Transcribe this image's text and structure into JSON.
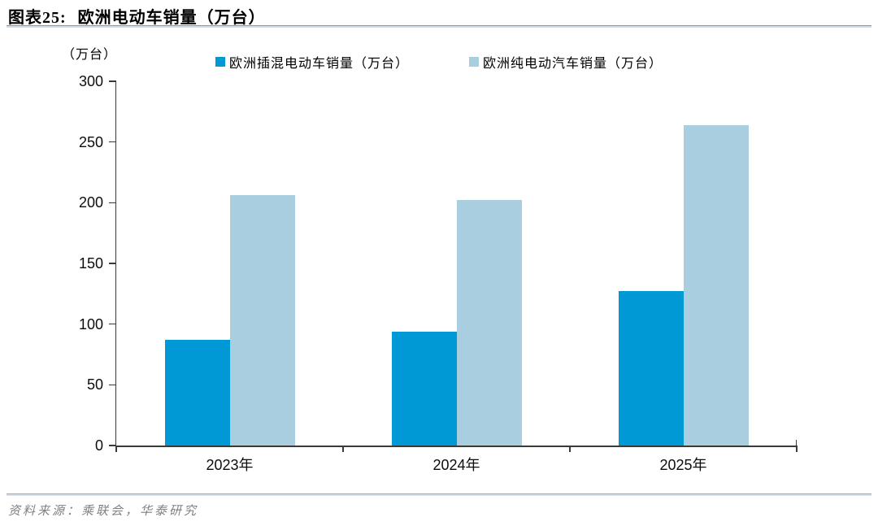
{
  "header": {
    "label": "图表25:",
    "title": "欧洲电动车销量（万台）"
  },
  "chart_data": {
    "type": "bar",
    "title": "欧洲电动车销量（万台）",
    "unit_label": "（万台）",
    "categories": [
      "2023年",
      "2024年",
      "2025年"
    ],
    "series": [
      {
        "name": "欧洲插混电动车销量（万台）",
        "color": "#0099D6",
        "values": [
          87,
          94,
          127
        ]
      },
      {
        "name": "欧洲纯电动汽车销量（万台）",
        "color": "#A9CEE0",
        "values": [
          206,
          202,
          264
        ]
      }
    ],
    "ylim": [
      0,
      300
    ],
    "yticks": [
      0,
      50,
      100,
      150,
      200,
      250,
      300
    ],
    "grid": false,
    "legend_position": "top-center"
  },
  "footer": {
    "source": "资料来源：乘联会，华泰研究"
  },
  "colors": {
    "series_phev": "#0099D6",
    "series_bev": "#A9CEE0",
    "axis": "#3A3A3A",
    "rule": "#8EA9C4",
    "source_text": "#7F7F7F"
  }
}
